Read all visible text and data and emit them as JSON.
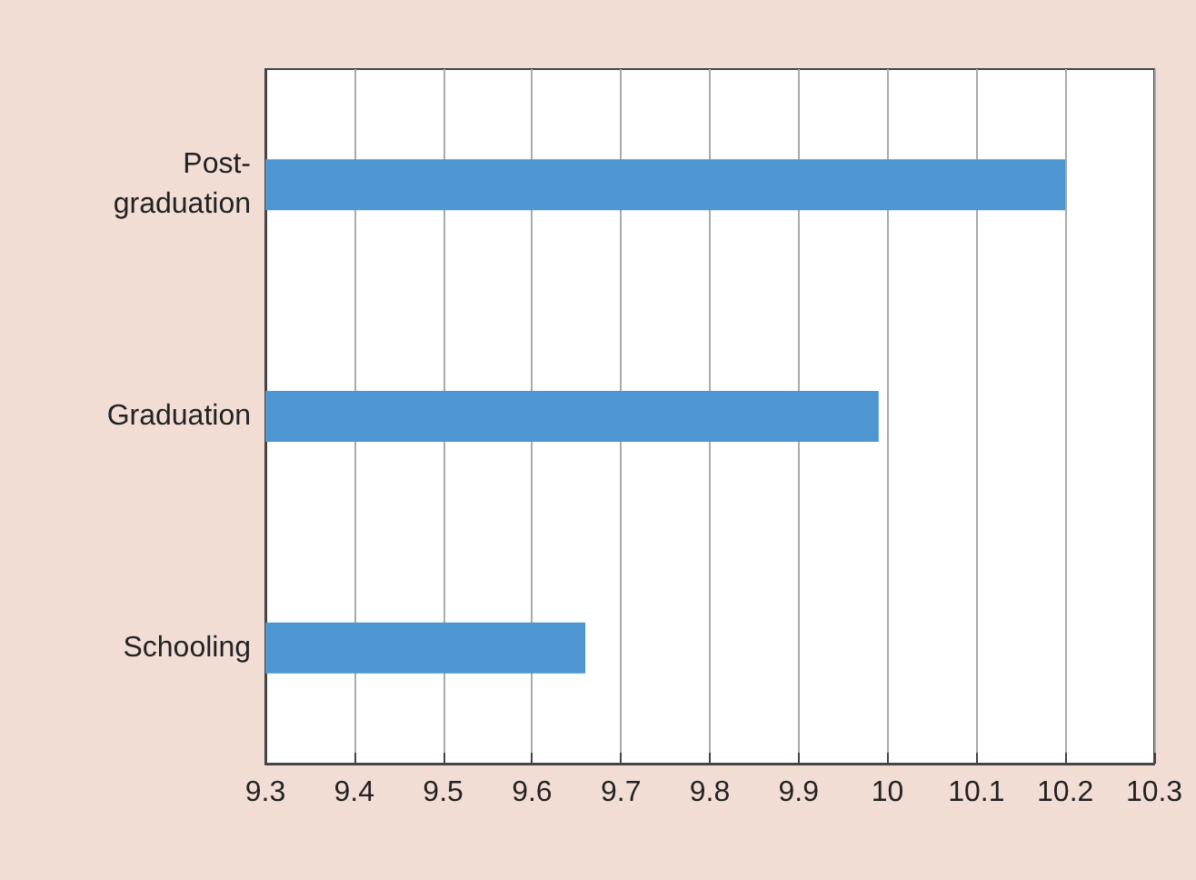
{
  "chart_data": {
    "type": "bar",
    "orientation": "horizontal",
    "categories": [
      "Post-graduation",
      "Graduation",
      "Schooling"
    ],
    "values": [
      10.2,
      9.99,
      9.66
    ],
    "color": "#4d96d1",
    "xlim": [
      9.3,
      10.3
    ],
    "xticks": [
      9.3,
      9.4,
      9.5,
      9.6,
      9.7,
      9.8,
      9.9,
      10,
      10.1,
      10.2,
      10.3
    ],
    "grid": "x"
  }
}
